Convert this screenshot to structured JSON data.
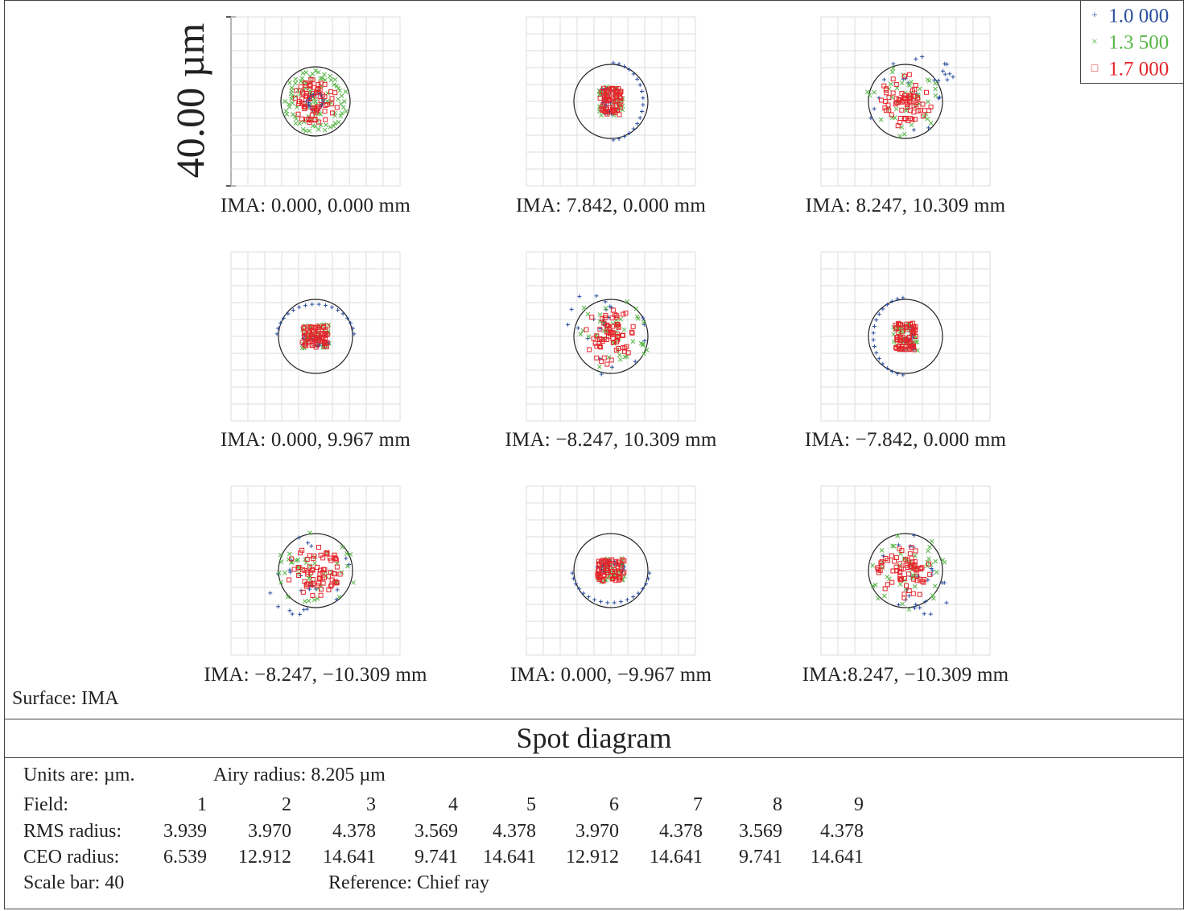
{
  "scale_bar_label": "40.00 µm",
  "legend": [
    {
      "label": "1.0 000",
      "color": "#2b4fa0",
      "symbol": "+"
    },
    {
      "label": "1.3 500",
      "color": "#56b545",
      "symbol": "×"
    },
    {
      "label": "1.7 000",
      "color": "#e5262b",
      "symbol": "□"
    }
  ],
  "fields": [
    {
      "label": "IMA: 0.000, 0.000 mm"
    },
    {
      "label": "IMA: 7.842, 0.000 mm"
    },
    {
      "label": "IMA: 8.247, 10.309 mm"
    },
    {
      "label": "IMA: 0.000, 9.967 mm"
    },
    {
      "label": "IMA: −8.247, 10.309 mm"
    },
    {
      "label": "IMA: −7.842, 0.000 mm"
    },
    {
      "label": "IMA: −8.247, −10.309 mm"
    },
    {
      "label": "IMA: 0.000, −9.967 mm"
    },
    {
      "label": "IMA:8.247,  −10.309 mm"
    }
  ],
  "surface_label": "Surface: IMA",
  "title": "Spot diagram",
  "info": {
    "units": "Units are: µm.",
    "airy": "Airy radius: 8.205 µm",
    "field_label": "Field:",
    "rms_label": "RMS radius:",
    "ceo_label": "CEO radius:",
    "scale_bar": "Scale bar: 40",
    "reference": "Reference: Chief ray"
  },
  "chart_data": {
    "type": "scatter",
    "title": "Spot diagram",
    "units": "µm",
    "scale_bar": 40,
    "airy_radius": 8.205,
    "wavelengths": [
      "1.0 000",
      "1.3 500",
      "1.7 000"
    ],
    "fields": [
      "1",
      "2",
      "3",
      "4",
      "5",
      "6",
      "7",
      "8",
      "9"
    ],
    "rms_radius": [
      "3.939",
      "3.970",
      "4.378",
      "3.569",
      "4.378",
      "3.970",
      "4.378",
      "3.569",
      "4.378"
    ],
    "ceo_radius": [
      "6.539",
      "12.912",
      "14.641",
      "9.741",
      "14.641",
      "12.912",
      "14.641",
      "9.741",
      "14.641"
    ],
    "grid": true,
    "legend_position": "top-right"
  }
}
